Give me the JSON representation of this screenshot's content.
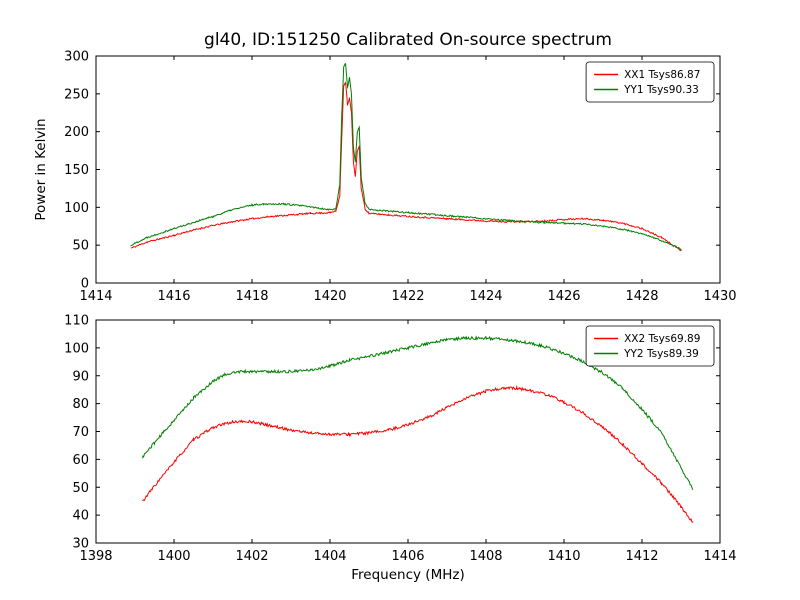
{
  "figure": {
    "background": "#ffffff",
    "title": "gl40, ID:151250 Calibrated On-source spectrum"
  },
  "chart_data": [
    {
      "type": "line",
      "title": "gl40, ID:151250 Calibrated On-source spectrum",
      "xlabel": "",
      "ylabel": "Power in Kelvin",
      "xlim": [
        1414,
        1430
      ],
      "ylim": [
        0,
        300
      ],
      "xticks": [
        1414,
        1416,
        1418,
        1420,
        1422,
        1424,
        1426,
        1428,
        1430
      ],
      "yticks": [
        0,
        50,
        100,
        150,
        200,
        250,
        300
      ],
      "grid": false,
      "legend_position": "upper right",
      "series": [
        {
          "name": "XX1 Tsys86.87",
          "color": "#ff0000",
          "x": [
            1414.9,
            1415.3,
            1416,
            1416.5,
            1417,
            1417.5,
            1418,
            1418.5,
            1419,
            1419.5,
            1420,
            1420.15,
            1420.25,
            1420.3,
            1420.35,
            1420.4,
            1420.45,
            1420.5,
            1420.55,
            1420.6,
            1420.65,
            1420.7,
            1420.75,
            1420.8,
            1420.9,
            1421,
            1421.5,
            1422,
            1423,
            1424,
            1424.5,
            1425,
            1425.5,
            1426,
            1426.5,
            1427,
            1427.5,
            1428,
            1428.5,
            1429
          ],
          "y": [
            46,
            54,
            63,
            70,
            76,
            81,
            85,
            88,
            90,
            92,
            93,
            95,
            115,
            190,
            260,
            265,
            235,
            245,
            225,
            160,
            140,
            175,
            180,
            125,
            98,
            92,
            90,
            88,
            85,
            82,
            81,
            81,
            82,
            84,
            85,
            83,
            79,
            72,
            60,
            43
          ]
        },
        {
          "name": "YY1 Tsys90.33",
          "color": "#008000",
          "x": [
            1414.9,
            1415.3,
            1416,
            1416.5,
            1417,
            1417.5,
            1418,
            1418.3,
            1418.8,
            1419.3,
            1419.7,
            1420,
            1420.15,
            1420.25,
            1420.3,
            1420.35,
            1420.4,
            1420.45,
            1420.5,
            1420.55,
            1420.6,
            1420.65,
            1420.7,
            1420.75,
            1420.8,
            1420.9,
            1421,
            1421.5,
            1422,
            1423,
            1424,
            1424.5,
            1425,
            1425.5,
            1426,
            1426.5,
            1427,
            1427.5,
            1428,
            1428.5,
            1429
          ],
          "y": [
            50,
            60,
            72,
            80,
            88,
            97,
            103,
            104.5,
            104.5,
            102,
            99,
            97,
            98,
            130,
            220,
            285,
            290,
            258,
            272,
            250,
            180,
            160,
            200,
            205,
            140,
            105,
            97,
            95,
            93,
            89,
            85,
            83,
            81,
            80,
            79,
            78,
            75,
            71,
            65,
            56,
            45
          ]
        }
      ]
    },
    {
      "type": "line",
      "title": "",
      "xlabel": "Frequency (MHz)",
      "ylabel": "",
      "xlim": [
        1398,
        1414
      ],
      "ylim": [
        30,
        110
      ],
      "xticks": [
        1398,
        1400,
        1402,
        1404,
        1406,
        1408,
        1410,
        1412,
        1414
      ],
      "yticks": [
        30,
        40,
        50,
        60,
        70,
        80,
        90,
        100,
        110
      ],
      "grid": false,
      "legend_position": "upper right",
      "series": [
        {
          "name": "XX2 Tsys69.89",
          "color": "#ff0000",
          "x": [
            1399.2,
            1399.5,
            1400,
            1400.5,
            1401,
            1401.5,
            1402,
            1402.5,
            1403,
            1403.5,
            1404,
            1404.5,
            1405,
            1405.5,
            1406,
            1406.5,
            1407,
            1407.5,
            1408,
            1408.4,
            1408.8,
            1409.2,
            1409.6,
            1410,
            1410.5,
            1411,
            1411.5,
            1412,
            1412.5,
            1413,
            1413.3
          ],
          "y": [
            45,
            50.5,
            59,
            67,
            71.5,
            73.5,
            73.5,
            72,
            70.5,
            69.5,
            69,
            69,
            69.5,
            70.5,
            72.5,
            75,
            78.5,
            82,
            84.5,
            85.5,
            85.5,
            84.5,
            83,
            80.5,
            76.5,
            71.5,
            65.5,
            58.5,
            51.5,
            43,
            37.5
          ]
        },
        {
          "name": "YY2 Tsys89.39",
          "color": "#008000",
          "x": [
            1399.2,
            1399.5,
            1400,
            1400.5,
            1401,
            1401.3,
            1401.7,
            1402,
            1402.5,
            1403,
            1403.5,
            1404,
            1404.5,
            1405,
            1405.5,
            1406,
            1406.5,
            1407,
            1407.5,
            1408,
            1408.5,
            1409,
            1409.5,
            1410,
            1410.5,
            1411,
            1411.5,
            1412,
            1412.5,
            1413,
            1413.3
          ],
          "y": [
            61,
            66,
            74,
            82,
            88,
            90.5,
            91.5,
            91.5,
            91.5,
            91.5,
            92,
            93.5,
            95.5,
            97,
            98.5,
            100,
            101.5,
            103,
            103.5,
            103.5,
            103,
            102,
            100.5,
            98,
            95,
            91,
            85.5,
            78,
            69.5,
            57,
            49.5
          ]
        }
      ]
    }
  ]
}
